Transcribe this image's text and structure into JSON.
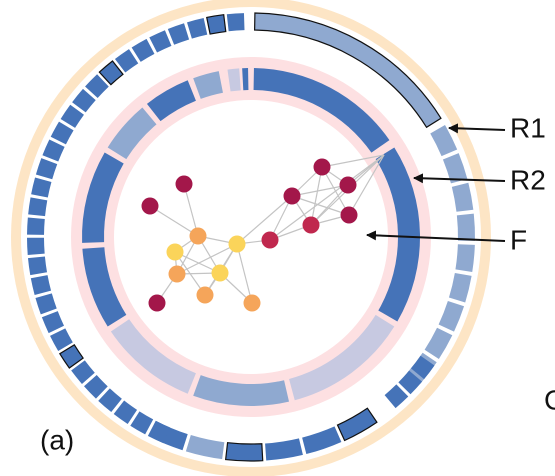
{
  "labels": {
    "r1": "R1",
    "r2": "R2",
    "f": "F",
    "panel": "(a)",
    "next_panel": "C"
  }
}
